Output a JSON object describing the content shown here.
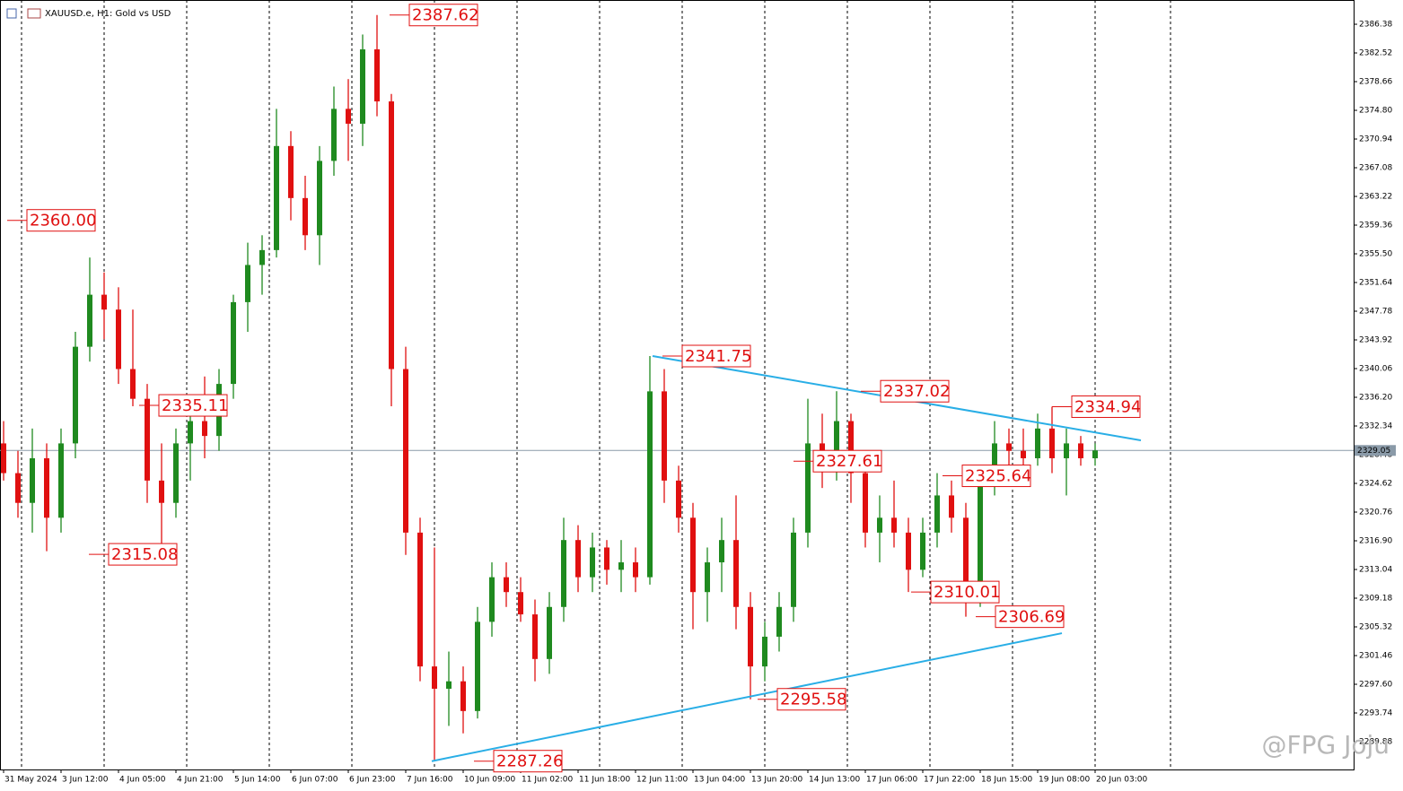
{
  "chart_data": {
    "type": "candlestick",
    "title": "XAUUSD.e, H1:  Gold vs USD",
    "watermark": "@FPG Joju",
    "up_color": "#1f8a1f",
    "down_color": "#e01010",
    "xlim": [
      -1,
      376
    ],
    "ylim": [
      2286.14,
      2389.64
    ],
    "x": [
      0,
      4,
      8,
      12,
      16,
      20,
      24,
      28,
      32,
      36,
      40,
      44,
      48,
      52,
      56,
      60,
      64,
      68,
      72,
      76,
      80,
      84,
      88,
      92,
      96,
      100,
      104,
      108,
      112,
      116,
      120,
      124,
      128,
      132,
      136,
      140,
      144,
      148,
      152,
      156,
      160,
      164,
      168,
      172,
      176,
      180,
      184,
      188,
      192,
      196,
      200,
      204,
      208,
      212,
      216,
      220,
      224,
      228,
      232,
      236,
      240,
      244,
      248,
      252,
      256,
      260,
      264,
      268,
      272,
      276,
      280,
      284,
      288,
      292,
      296,
      300,
      304
    ],
    "open": [
      2330,
      2326,
      2322,
      2328,
      2320,
      2330,
      2343,
      2350,
      2348,
      2340,
      2336,
      2325,
      2322,
      2330,
      2333,
      2331,
      2338,
      2349,
      2354,
      2356,
      2370,
      2363,
      2358,
      2368,
      2375,
      2373,
      2383,
      2376,
      2340,
      2318,
      2300,
      2297,
      2298,
      2294,
      2306,
      2312,
      2310,
      2307,
      2301,
      2308,
      2317,
      2312,
      2316,
      2313,
      2314,
      2312,
      2337,
      2325,
      2320,
      2310,
      2314,
      2317,
      2308,
      2300,
      2304,
      2308,
      2318,
      2330,
      2327,
      2333,
      2326,
      2318,
      2320,
      2318,
      2313,
      2318,
      2323,
      2320,
      2309,
      2325,
      2330,
      2329,
      2328,
      2332,
      2328,
      2330,
      2328
    ],
    "high": [
      2333,
      2329,
      2332,
      2330,
      2332,
      2345,
      2355,
      2353,
      2351,
      2348,
      2338,
      2330,
      2332,
      2336,
      2339,
      2340,
      2350,
      2357,
      2358,
      2375,
      2372,
      2366,
      2370,
      2378,
      2379,
      2385,
      2387.62,
      2377,
      2343,
      2320,
      2316,
      2302,
      2300,
      2308,
      2314,
      2314,
      2312,
      2309,
      2310,
      2320,
      2319,
      2318,
      2317,
      2317,
      2316,
      2341.75,
      2340,
      2327,
      2322,
      2316,
      2320,
      2323,
      2310,
      2306,
      2310,
      2320,
      2336,
      2334,
      2337.02,
      2334,
      2328,
      2323,
      2325,
      2320,
      2320,
      2326,
      2325,
      2322,
      2326,
      2333,
      2332,
      2332,
      2334,
      2334.94,
      2332,
      2331,
      2330
    ],
    "low": [
      2325,
      2320,
      2318,
      2315.5,
      2318,
      2328,
      2341,
      2344,
      2338,
      2335,
      2322,
      2315.08,
      2320,
      2325,
      2328,
      2329,
      2336,
      2345,
      2350,
      2355,
      2360,
      2356,
      2354,
      2366,
      2368,
      2370,
      2374,
      2335,
      2315,
      2298,
      2287.26,
      2292,
      2291,
      2293,
      2304,
      2308,
      2306,
      2298,
      2299,
      2306,
      2310,
      2310,
      2311,
      2310,
      2310,
      2311,
      2322,
      2318,
      2305,
      2306,
      2310,
      2305,
      2295.58,
      2298,
      2302,
      2306,
      2316,
      2324,
      2325,
      2322,
      2316,
      2314,
      2316,
      2310.01,
      2312,
      2316,
      2318,
      2306.69,
      2308,
      2323,
      2327,
      2326,
      2327,
      2326,
      2323,
      2327,
      2327
    ],
    "close": [
      2326,
      2322,
      2328,
      2320,
      2330,
      2343,
      2350,
      2348,
      2340,
      2336,
      2325,
      2322,
      2330,
      2333,
      2331,
      2338,
      2349,
      2354,
      2356,
      2370,
      2363,
      2358,
      2368,
      2375,
      2373,
      2383,
      2376,
      2340,
      2318,
      2300,
      2297,
      2298,
      2294,
      2306,
      2312,
      2310,
      2307,
      2301,
      2308,
      2317,
      2312,
      2316,
      2313,
      2314,
      2312,
      2337,
      2325,
      2320,
      2310,
      2314,
      2317,
      2308,
      2300,
      2304,
      2308,
      2318,
      2330,
      2327,
      2333,
      2326,
      2318,
      2320,
      2318,
      2313,
      2318,
      2323,
      2320,
      2309,
      2325,
      2330,
      2329,
      2328,
      2332,
      2328,
      2330,
      2328,
      2329.05
    ],
    "yticks": [
      2386.38,
      2382.52,
      2378.66,
      {
        "value": 2374.8,
        "label": "2374.80"
      },
      2370.94,
      2367.08,
      2363.22,
      2359.36,
      {
        "value": 2355.5,
        "label": "2355.50"
      },
      2351.64,
      2347.78,
      2343.92,
      2340.06,
      {
        "value": 2336.2,
        "label": "2336.20"
      },
      2332.34,
      2328.48,
      2324.62,
      2320.76,
      {
        "value": 2316.9,
        "label": "2316.90"
      },
      2313.04,
      2309.18,
      2305.32,
      2301.46,
      {
        "value": 2297.6,
        "label": "2297.60"
      },
      2293.74,
      2289.88
    ],
    "xticks": [
      {
        "value": 0,
        "label": "31 May 2024"
      },
      {
        "value": 16,
        "label": "3 Jun 12:00"
      },
      {
        "value": 32,
        "label": "4 Jun 05:00"
      },
      {
        "value": 48,
        "label": "4 Jun 21:00"
      },
      {
        "value": 64,
        "label": "5 Jun 14:00"
      },
      {
        "value": 80,
        "label": "6 Jun 07:00"
      },
      {
        "value": 96,
        "label": "6 Jun 23:00"
      },
      {
        "value": 112,
        "label": "7 Jun 16:00"
      },
      {
        "value": 128,
        "label": "10 Jun 09:00"
      },
      {
        "value": 144,
        "label": "11 Jun 02:00"
      },
      {
        "value": 160,
        "label": "11 Jun 18:00"
      },
      {
        "value": 176,
        "label": "12 Jun 11:00"
      },
      {
        "value": 192,
        "label": "13 Jun 04:00"
      },
      {
        "value": 208,
        "label": "13 Jun 20:00"
      },
      {
        "value": 224,
        "label": "14 Jun 13:00"
      },
      {
        "value": 240,
        "label": "17 Jun 06:00"
      },
      {
        "value": 256,
        "label": "17 Jun 22:00"
      },
      {
        "value": 272,
        "label": "18 Jun 15:00"
      },
      {
        "value": 288,
        "label": "19 Jun 08:00"
      },
      {
        "value": 304,
        "label": "20 Jun 03:00"
      }
    ],
    "vgrid": [
      5,
      28,
      51,
      74,
      97,
      120,
      143,
      166,
      189,
      212,
      235,
      258,
      281,
      304,
      325
    ],
    "current_price": {
      "value": 2329.05,
      "label": "2329.05"
    },
    "annotations": [
      {
        "value": 2387.62,
        "label": "2387.62",
        "x": 113
      },
      {
        "value": 2360,
        "label": "2360.00",
        "x": 6.5
      },
      {
        "value": 2335.11,
        "label": "2335.11",
        "x": 43.25
      },
      {
        "value": 2315.08,
        "label": "2315.08",
        "x": 29.25
      },
      {
        "value": 2341.75,
        "label": "2341.75",
        "x": 189
      },
      {
        "value": 2337.02,
        "label": "2337.02",
        "x": 244.25
      },
      {
        "value": 2334.94,
        "label": "2334.94",
        "x": 297.5
      },
      {
        "value": 2327.61,
        "label": "2327.61",
        "x": 225.5
      },
      {
        "value": 2325.64,
        "label": "2325.64",
        "x": 267
      },
      {
        "value": 2310.01,
        "label": "2310.01",
        "x": 258.25
      },
      {
        "value": 2306.69,
        "label": "2306.69",
        "x": 276.25
      },
      {
        "value": 2295.58,
        "label": "2295.58",
        "x": 215.5
      },
      {
        "value": 2287.26,
        "label": "2287.26",
        "x": 136.5
      }
    ],
    "trendlines": [
      {
        "color": "#29aee6",
        "x": [
          180.75,
          316.75
        ],
        "values": [
          2341.75,
          2330.41
        ]
      },
      {
        "color": "#29aee6",
        "x": [
          119.25,
          294.75
        ],
        "values": [
          2287.26,
          2304.47
        ]
      }
    ]
  }
}
